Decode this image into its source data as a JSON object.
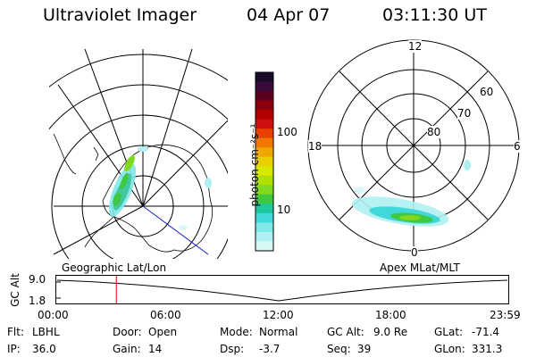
{
  "header": {
    "title": "Ultraviolet Imager",
    "date": "04 Apr 07",
    "time": "03:11:30 UT"
  },
  "colorbar": {
    "unit_label": "photon cm⁻²s⁻¹",
    "ticks": [
      "100",
      "10"
    ],
    "colors": [
      "#1a0a2a",
      "#3a0a3a",
      "#5a0020",
      "#8c0010",
      "#b00000",
      "#d01010",
      "#e84000",
      "#f07800",
      "#f0a800",
      "#e8d000",
      "#d8e800",
      "#b0e000",
      "#80d820",
      "#40c840",
      "#20c8a0",
      "#40d8d8",
      "#80e8e8",
      "#b0f0f0",
      "#d8f8f8"
    ]
  },
  "left_map": {
    "caption": "Geographic Lat/Lon"
  },
  "right_map": {
    "caption": "Apex MLat/MLT",
    "mlt_labels": {
      "top": "12",
      "left": "18",
      "right": "6",
      "bottom": "0"
    },
    "lat_labels": [
      "60",
      "70",
      "80"
    ]
  },
  "timeline": {
    "ylabel": "GC Alt",
    "yticks": [
      "9.0",
      "1.8"
    ],
    "xticks": [
      "00:00",
      "06:00",
      "12:00",
      "18:00",
      "23:59"
    ],
    "current_marker_hours": 3.19
  },
  "info": {
    "flt_label": "Flt:",
    "flt_value": "LBHL",
    "ip_label": "IP:",
    "ip_value": "36.0",
    "door_label": "Door:",
    "door_value": "Open",
    "gain_label": "Gain:",
    "gain_value": "14",
    "mode_label": "Mode:",
    "mode_value": "Normal",
    "dsp_label": "Dsp:",
    "dsp_value": "-3.7",
    "gcalt_label": "GC Alt:",
    "gcalt_value": "9.0 Re",
    "seq_label": "Seq:",
    "seq_value": "39",
    "glat_label": "GLat:",
    "glat_value": "-71.4",
    "glon_label": "GLon:",
    "glon_value": "331.3"
  }
}
